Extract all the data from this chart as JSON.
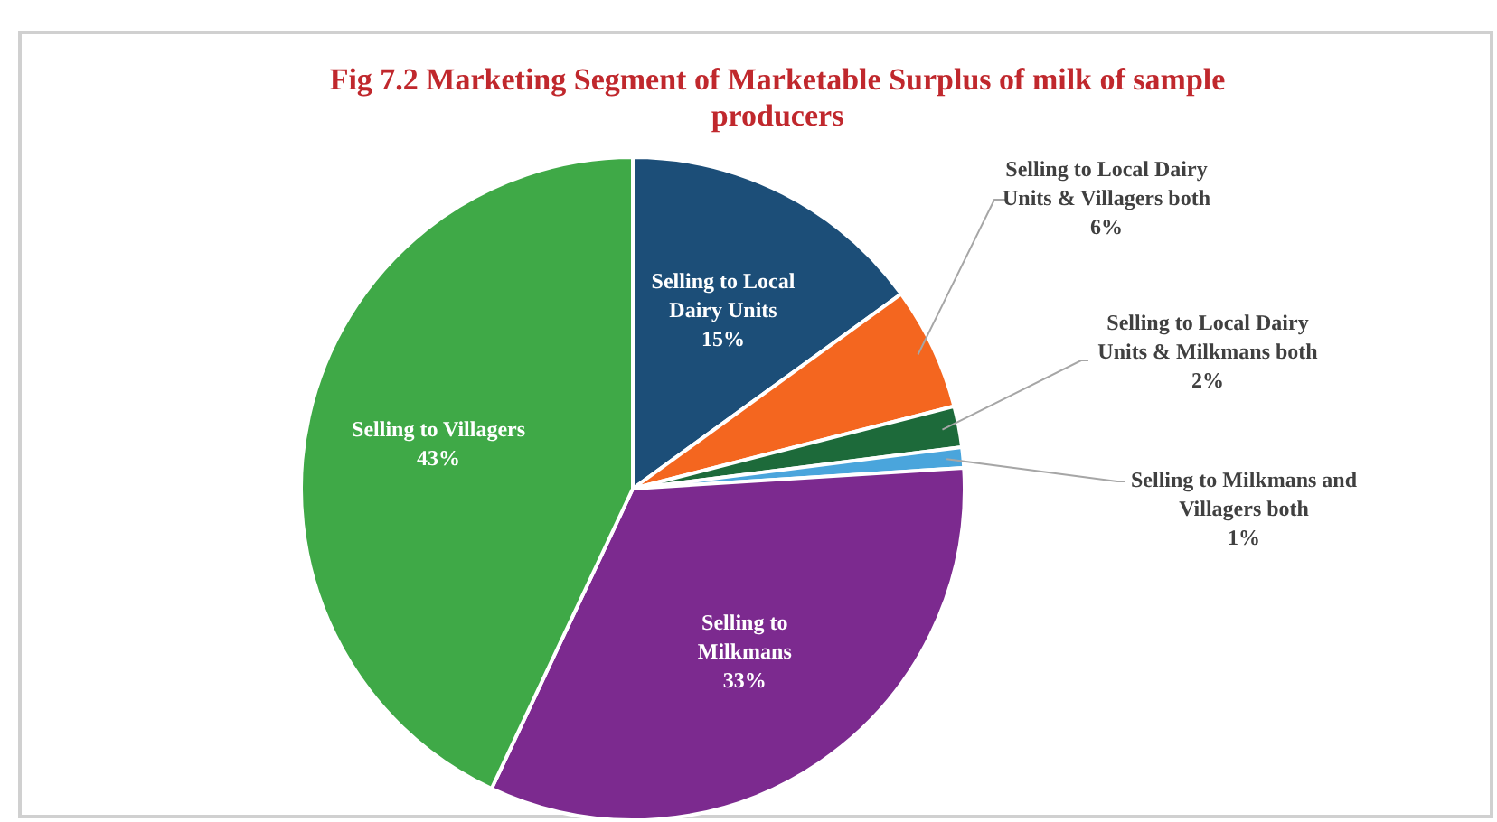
{
  "chart_data": {
    "type": "pie",
    "title": "Fig 7.2 Marketing Segment of Marketable Surplus of milk of sample producers",
    "categories": [
      "Selling to Local Dairy Units",
      "Selling to Local Dairy Units & Villagers both",
      "Selling to Local Dairy Units & Milkmans both",
      "Selling to Milkmans and Villagers both",
      "Selling to Milkmans",
      "Selling to Villagers"
    ],
    "values": [
      15,
      6,
      2,
      1,
      33,
      43
    ],
    "colors": [
      "#1c4e78",
      "#f4661f",
      "#1d6a3a",
      "#4aa5dc",
      "#7c2a8f",
      "#3fa947"
    ],
    "value_labels": [
      "15%",
      "6%",
      "2%",
      "1%",
      "33%",
      "43%"
    ],
    "legend": false
  }
}
